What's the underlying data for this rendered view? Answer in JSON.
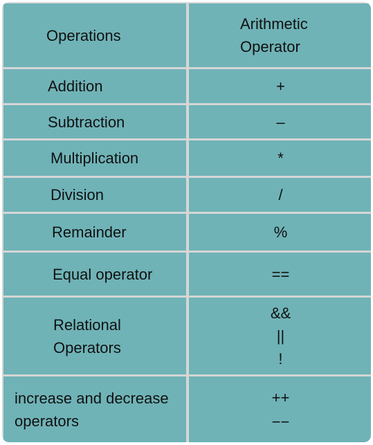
{
  "table": {
    "headers": {
      "operations": "Operations",
      "arithmetic": "Arithmetic\nOperator"
    },
    "rows": [
      {
        "operation": "Addition",
        "symbol": "+"
      },
      {
        "operation": "Subtraction",
        "symbol": "–"
      },
      {
        "operation": "Multiplication",
        "symbol": "*"
      },
      {
        "operation": "Division",
        "symbol": "/"
      },
      {
        "operation": "Remainder",
        "symbol": "%"
      },
      {
        "operation": "Equal operator",
        "symbol": "=="
      },
      {
        "operation": "Relational\nOperators",
        "symbols": [
          "&&",
          "||",
          "!"
        ]
      },
      {
        "operation": "increase and decrease\noperators",
        "symbols": [
          "++",
          "−−"
        ]
      }
    ]
  },
  "colors": {
    "cell": "#6fb3b7",
    "grid_line": "#d6d6d6"
  }
}
